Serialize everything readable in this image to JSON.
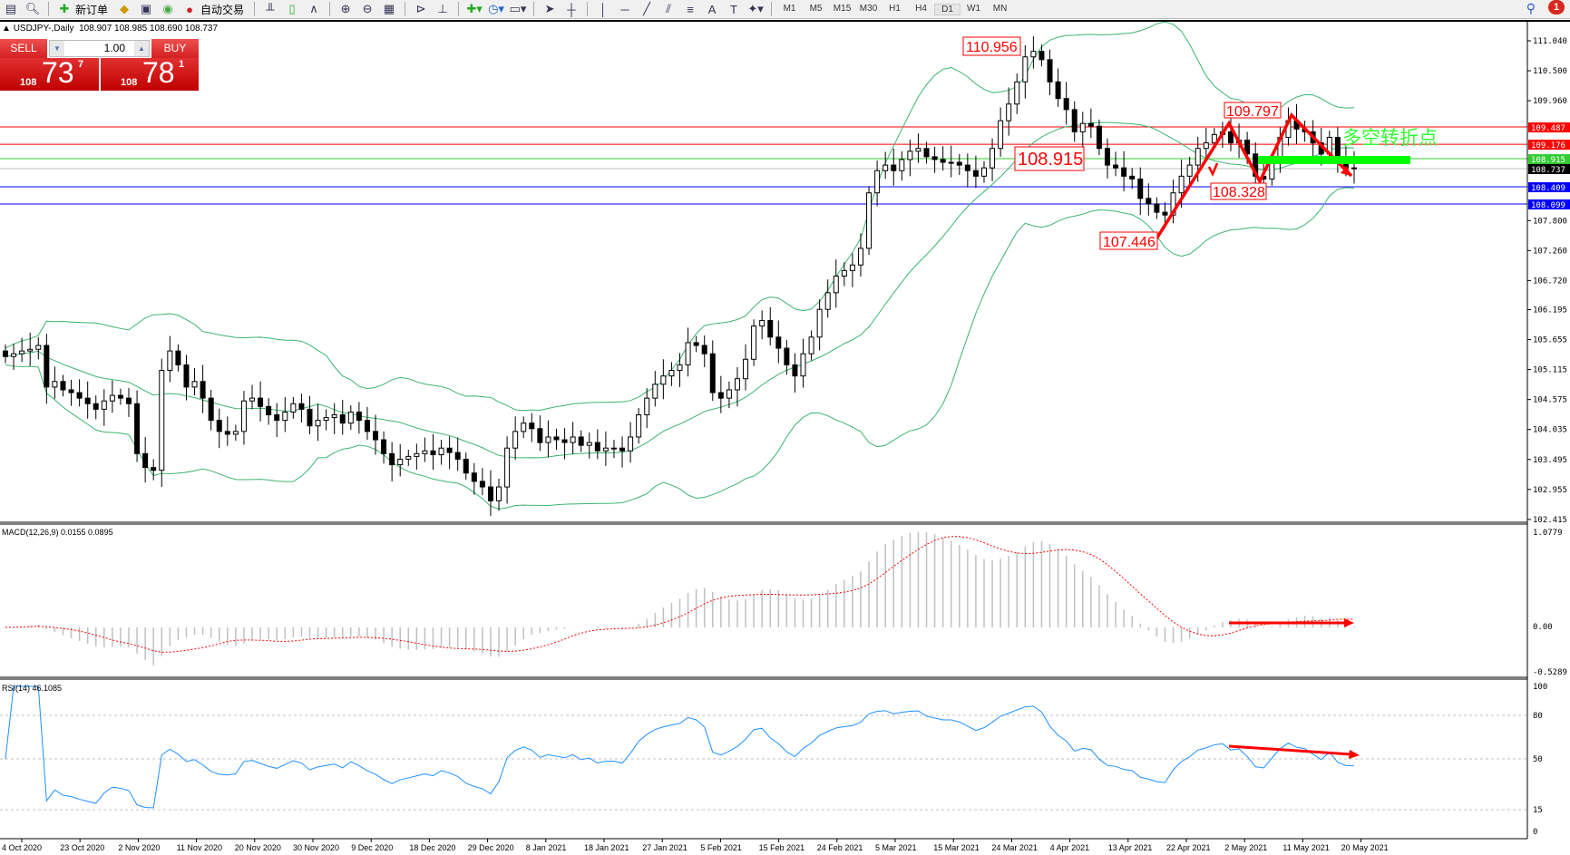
{
  "toolbar": {
    "new_order": "新订单",
    "auto_trading": "自动交易",
    "timeframes": [
      "M1",
      "M5",
      "M15",
      "M30",
      "H1",
      "H4",
      "D1",
      "W1",
      "MN"
    ],
    "active_timeframe": "D1",
    "notification_count": "1",
    "icons": [
      "search-icon",
      "notification-icon"
    ]
  },
  "chart": {
    "symbol": "USDJPY-,Daily",
    "ohlc": "108.907 108.985 108.690 108.737"
  },
  "trade_panel": {
    "sell_label": "SELL",
    "buy_label": "BUY",
    "lot": "1.00",
    "sell_price": {
      "prefix": "108",
      "big": "73",
      "sup": "7"
    },
    "buy_price": {
      "prefix": "108",
      "big": "78",
      "sup": "1"
    }
  },
  "chart_data": {
    "type": "candlestick",
    "symbol": "USDJPY",
    "timeframe": "Daily",
    "closes": [
      105.35,
      105.4,
      105.45,
      105.48,
      105.55,
      104.8,
      104.9,
      104.75,
      104.7,
      104.6,
      104.5,
      104.4,
      104.55,
      104.65,
      104.6,
      104.5,
      103.6,
      103.35,
      103.3,
      105.1,
      105.45,
      105.2,
      104.8,
      104.9,
      104.6,
      104.2,
      104.0,
      103.95,
      104.0,
      104.55,
      104.6,
      104.45,
      104.3,
      104.2,
      104.35,
      104.5,
      104.4,
      104.1,
      104.2,
      104.25,
      104.3,
      104.15,
      104.35,
      104.2,
      104.0,
      103.85,
      103.6,
      103.4,
      103.5,
      103.55,
      103.6,
      103.65,
      103.58,
      103.7,
      103.62,
      103.5,
      103.25,
      103.1,
      103.0,
      102.75,
      103.0,
      103.7,
      104.0,
      104.15,
      104.05,
      103.8,
      103.9,
      103.85,
      103.8,
      103.9,
      103.75,
      103.8,
      103.65,
      103.7,
      103.7,
      103.65,
      103.9,
      104.3,
      104.6,
      104.85,
      105.0,
      105.1,
      105.2,
      105.6,
      105.55,
      105.4,
      104.7,
      104.6,
      104.75,
      104.95,
      105.3,
      105.9,
      106.0,
      105.7,
      105.5,
      105.2,
      105.0,
      105.4,
      105.7,
      106.2,
      106.5,
      106.8,
      106.9,
      107.0,
      107.3,
      108.3,
      108.7,
      108.8,
      108.7,
      108.9,
      109.05,
      109.1,
      108.95,
      108.9,
      108.85,
      108.85,
      108.8,
      108.7,
      108.6,
      108.75,
      109.1,
      109.6,
      109.9,
      110.3,
      110.75,
      110.85,
      110.7,
      110.3,
      110.0,
      109.8,
      109.4,
      109.55,
      109.5,
      109.1,
      108.8,
      108.75,
      108.6,
      108.55,
      108.2,
      108.1,
      107.95,
      107.9,
      108.3,
      108.6,
      108.8,
      109.1,
      109.2,
      109.35,
      109.4,
      109.2,
      109.25,
      109.0,
      108.6,
      108.55,
      108.9,
      109.3,
      109.6,
      109.45,
      109.4,
      109.2,
      109.0,
      109.3,
      108.9,
      108.75,
      108.737
    ],
    "price_axis": [
      "111.040",
      "110.500",
      "109.960",
      "107.800",
      "107.260",
      "106.720",
      "106.195",
      "105.655",
      "105.115",
      "104.575",
      "104.035",
      "103.495",
      "102.955",
      "102.415"
    ],
    "price_range": [
      102.415,
      111.04
    ],
    "dates": [
      "4 Oct 2020",
      "23 Oct 2020",
      "2 Nov 2020",
      "11 Nov 2020",
      "20 Nov 2020",
      "30 Nov 2020",
      "9 Dec 2020",
      "18 Dec 2020",
      "29 Dec 2020",
      "8 Jan 2021",
      "18 Jan 2021",
      "27 Jan 2021",
      "5 Feb 2021",
      "15 Feb 2021",
      "24 Feb 2021",
      "5 Mar 2021",
      "15 Mar 2021",
      "24 Mar 2021",
      "4 Apr 2021",
      "13 Apr 2021",
      "22 Apr 2021",
      "2 May 2021",
      "11 May 2021",
      "20 May 2021"
    ],
    "hlines": [
      {
        "price": "109.487",
        "color": "#ff0000"
      },
      {
        "price": "109.176",
        "color": "#ff0000"
      },
      {
        "price": "108.915",
        "color": "#32cd32"
      },
      {
        "price": "108.737",
        "color": "#000000"
      },
      {
        "price": "108.409",
        "color": "#0000ff"
      },
      {
        "price": "108.099",
        "color": "#0000ff"
      }
    ],
    "annotations": [
      "110.956",
      "108.915",
      "107.446",
      "109.797",
      "108.328"
    ],
    "note_text": "多空转折点",
    "indicators": {
      "bollinger": "20,2",
      "color": "#3cb371"
    },
    "macd": {
      "label": "MACD(12,26,9) 0.0155 0.0895",
      "axis": [
        "1.0779",
        "0.00",
        "-0.5289"
      ],
      "range": [
        -0.5289,
        1.0779
      ]
    },
    "rsi": {
      "label": "RSI(14) 46.1085",
      "axis": [
        "100",
        "80",
        "50",
        "15",
        "0"
      ],
      "levels": [
        80,
        50,
        15
      ],
      "color": "#1e90ff"
    }
  }
}
